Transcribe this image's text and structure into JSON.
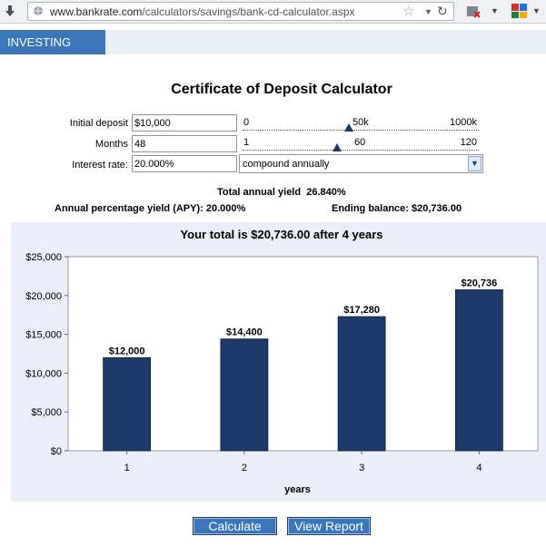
{
  "browser": {
    "url_host": "www.bankrate.com",
    "url_path": "/calculators/savings/bank-cd-calculator.aspx"
  },
  "header": {
    "section_tab": "INVESTING"
  },
  "page": {
    "title": "Certificate of Deposit Calculator"
  },
  "form": {
    "initial_deposit": {
      "label": "Initial deposit",
      "value": "$10,000",
      "slider": {
        "ticks": [
          "0",
          "50k",
          "1000k"
        ],
        "level": 0.45
      }
    },
    "months": {
      "label": "Months",
      "value": "48",
      "slider": {
        "ticks": [
          "1",
          "60",
          "120"
        ],
        "level": 0.4
      }
    },
    "interest_rate": {
      "label": "Interest rate:",
      "value": "20.000%",
      "compounding": "compound annually"
    }
  },
  "results": {
    "total_annual_yield_label": "Total annual yield",
    "total_annual_yield_value": "26.840%",
    "apy_text": "Annual percentage yield (APY): 20.000%",
    "ending_balance_text": "Ending balance: $20,736.00"
  },
  "chart_data": {
    "type": "bar",
    "title": "Your total is $20,736.00 after 4 years",
    "xlabel": "years",
    "ylabel": "",
    "categories": [
      "1",
      "2",
      "3",
      "4"
    ],
    "values": [
      12000,
      14400,
      17280,
      20736
    ],
    "data_labels": [
      "$12,000",
      "$14,400",
      "$17,280",
      "$20,736"
    ],
    "ylim": [
      0,
      25000
    ],
    "yticks": [
      0,
      5000,
      10000,
      15000,
      20000,
      25000
    ],
    "ytick_labels": [
      "$0",
      "$5,000",
      "$10,000",
      "$15,000",
      "$20,000",
      "$25,000"
    ],
    "grid": false,
    "bar_color": "#1c3a6a"
  },
  "buttons": {
    "calculate": "Calculate",
    "view_report": "View Report"
  },
  "colors": {
    "accent": "#3a76b8",
    "panel": "#e9eef8",
    "bar": "#1c3a6a"
  }
}
